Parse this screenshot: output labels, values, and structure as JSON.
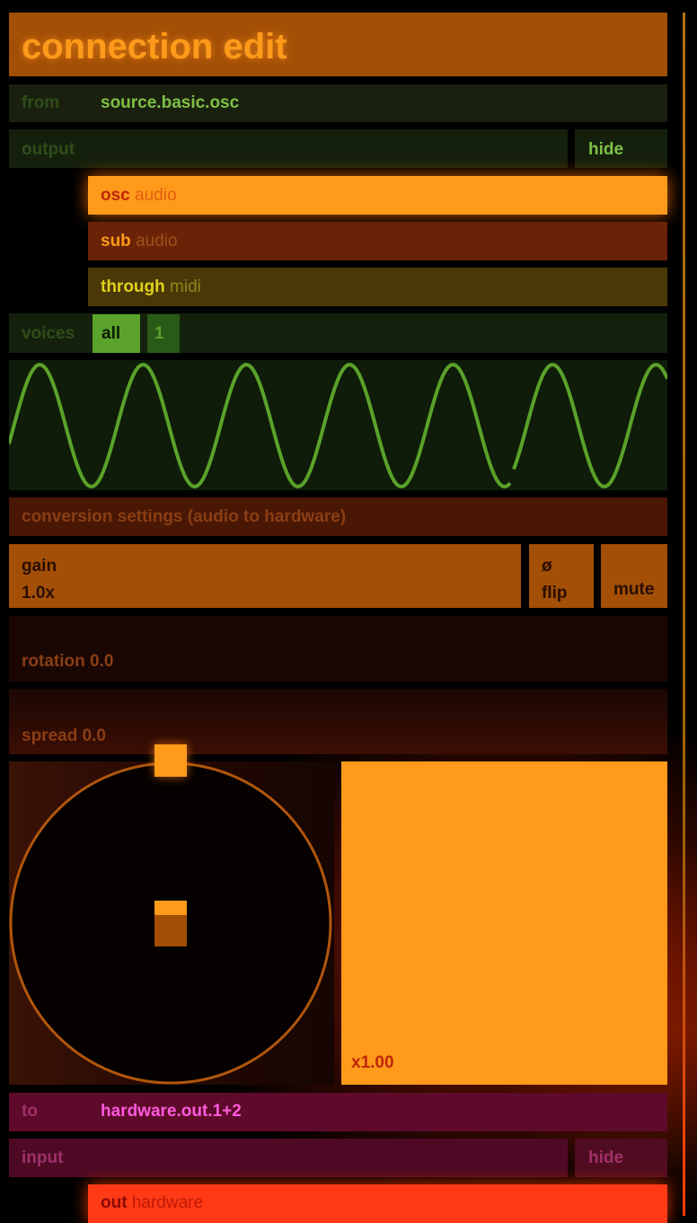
{
  "title": "connection edit",
  "from": {
    "label": "from",
    "value": "source.basic.osc"
  },
  "output": {
    "label": "output",
    "hide_label": "hide",
    "ports": [
      {
        "name": "osc",
        "type": "audio"
      },
      {
        "name": "sub",
        "type": "audio"
      },
      {
        "name": "through",
        "type": "midi"
      }
    ]
  },
  "voices": {
    "label": "voices",
    "options": [
      "all",
      "1"
    ],
    "selected": "all"
  },
  "waveform": {
    "kind": "sine",
    "color": "#5aa22a"
  },
  "conversion": {
    "header": "conversion settings (audio to hardware)",
    "gain_label": "gain",
    "gain_value": "1.0x",
    "flip_symbol": "ø",
    "flip_label": "flip",
    "mute_label": "mute",
    "rotation_text": "rotation 0.0",
    "spread_text": "spread 0.0",
    "level_text": "x1.00"
  },
  "to": {
    "label": "to",
    "value": "hardware.out.1+2"
  },
  "input": {
    "label": "input",
    "hide_label": "hide",
    "ports": [
      {
        "name": "out",
        "type": "hardware"
      }
    ]
  },
  "colors": {
    "accent_orange": "#ff9a1a",
    "dark_orange": "#a34f06",
    "green": "#7fc046",
    "magenta": "#ff5adc",
    "red": "#ff3a14"
  }
}
